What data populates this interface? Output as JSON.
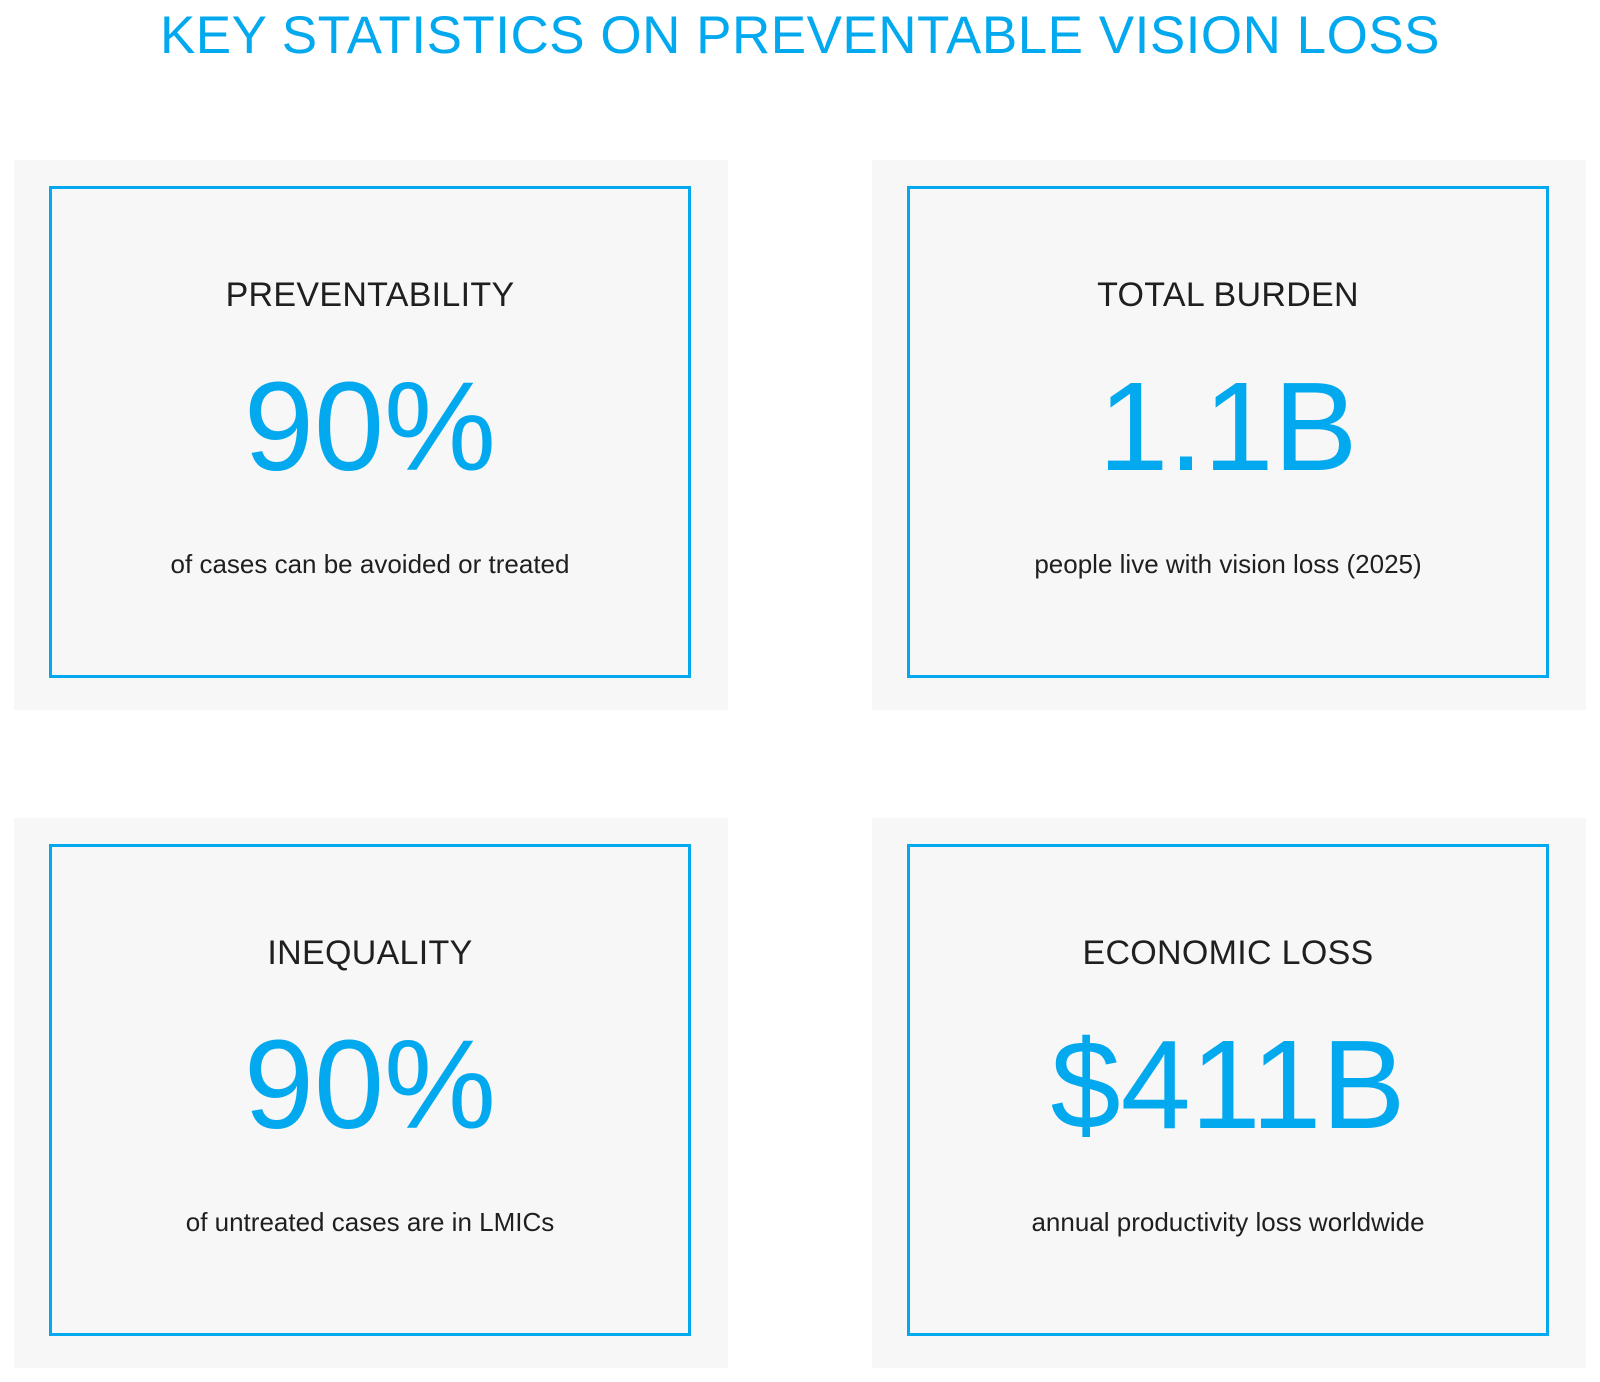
{
  "title": "KEY STATISTICS ON PREVENTABLE VISION LOSS",
  "colors": {
    "accent": "#03A9EE",
    "card_background": "#f7f7f7",
    "text": "#1f1f1f"
  },
  "cards": [
    {
      "label": "PREVENTABILITY",
      "value": "90%",
      "description": "of cases can be avoided or treated"
    },
    {
      "label": "TOTAL BURDEN",
      "value": "1.1B",
      "description": "people live with vision loss (2025)"
    },
    {
      "label": "INEQUALITY",
      "value": "90%",
      "description": "of untreated cases are in LMICs"
    },
    {
      "label": "ECONOMIC LOSS",
      "value": "$411B",
      "description": "annual productivity loss worldwide"
    }
  ]
}
